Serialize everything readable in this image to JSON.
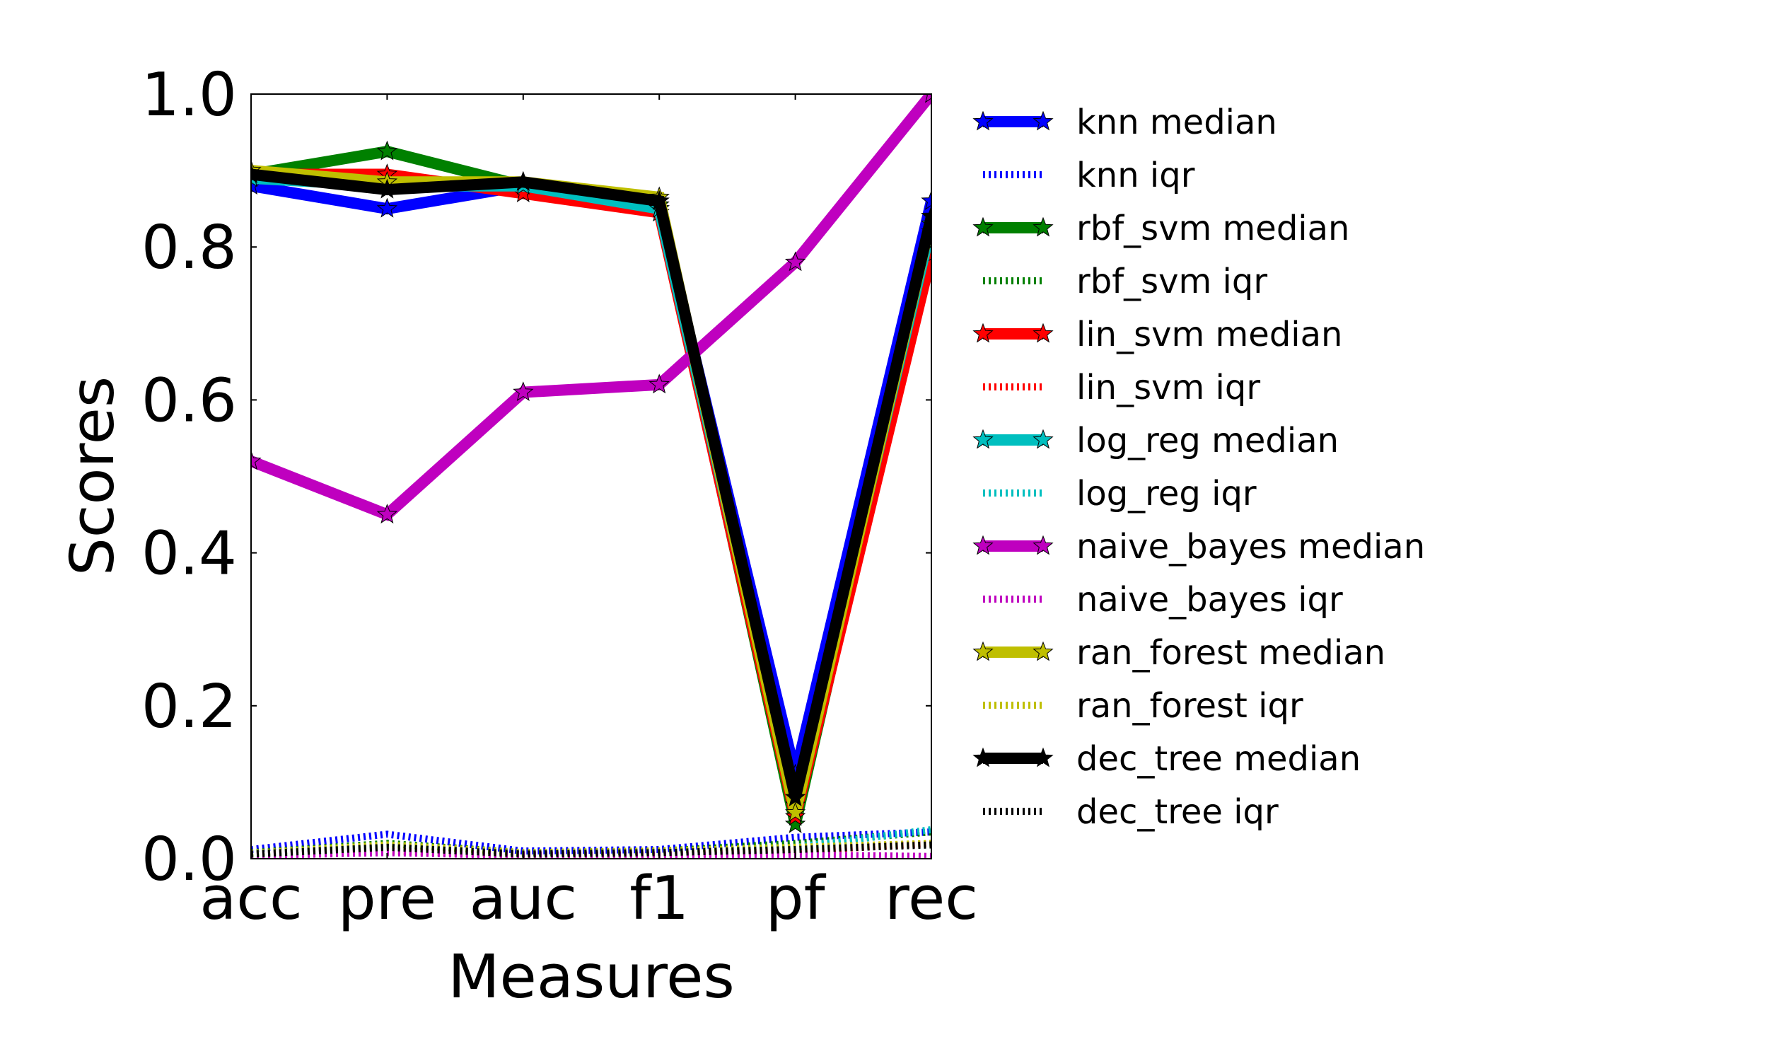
{
  "chart_data": {
    "type": "line",
    "title": "",
    "xlabel": "Measures",
    "ylabel": "Scores",
    "categories": [
      "acc",
      "pre",
      "auc",
      "f1",
      "pf",
      "rec"
    ],
    "ylim": [
      0,
      1
    ],
    "yticks": [
      "0.0",
      "0.2",
      "0.4",
      "0.6",
      "0.8",
      "1.0"
    ],
    "grid": false,
    "legend_position": "right",
    "series": [
      {
        "name": "knn median",
        "color": "#0000ff",
        "style": "solid",
        "marker": "star",
        "values": [
          0.88,
          0.85,
          0.88,
          0.85,
          0.11,
          0.86
        ]
      },
      {
        "name": "knn iqr",
        "color": "#0000ff",
        "style": "dotted",
        "values": [
          0.012,
          0.032,
          0.01,
          0.012,
          0.028,
          0.035
        ]
      },
      {
        "name": "rbf_svm median",
        "color": "#008000",
        "style": "solid",
        "marker": "star",
        "values": [
          0.895,
          0.925,
          0.88,
          0.855,
          0.045,
          0.82
        ]
      },
      {
        "name": "rbf_svm iqr",
        "color": "#008000",
        "style": "dotted",
        "values": [
          0.008,
          0.02,
          0.008,
          0.01,
          0.02,
          0.035
        ]
      },
      {
        "name": "lin_svm median",
        "color": "#ff0000",
        "style": "solid",
        "marker": "star",
        "values": [
          0.895,
          0.895,
          0.87,
          0.845,
          0.055,
          0.79
        ]
      },
      {
        "name": "lin_svm iqr",
        "color": "#ff0000",
        "style": "dotted",
        "values": [
          0.005,
          0.01,
          0.005,
          0.005,
          0.01,
          0.02
        ]
      },
      {
        "name": "log_reg median",
        "color": "#00bfbf",
        "style": "solid",
        "marker": "star",
        "values": [
          0.89,
          0.88,
          0.88,
          0.85,
          0.07,
          0.83
        ]
      },
      {
        "name": "log_reg iqr",
        "color": "#00bfbf",
        "style": "dotted",
        "values": [
          0.006,
          0.015,
          0.007,
          0.008,
          0.015,
          0.038
        ]
      },
      {
        "name": "naive_bayes median",
        "color": "#bf00bf",
        "style": "solid",
        "marker": "star",
        "values": [
          0.52,
          0.45,
          0.61,
          0.62,
          0.78,
          1.0
        ]
      },
      {
        "name": "naive_bayes iqr",
        "color": "#bf00bf",
        "style": "dotted",
        "values": [
          0.004,
          0.008,
          0.004,
          0.004,
          0.005,
          0.003
        ]
      },
      {
        "name": "ran_forest median",
        "color": "#bfbf00",
        "style": "solid",
        "marker": "star",
        "values": [
          0.9,
          0.885,
          0.885,
          0.865,
          0.06,
          0.84
        ]
      },
      {
        "name": "ran_forest iqr",
        "color": "#bfbf00",
        "style": "dotted",
        "values": [
          0.007,
          0.018,
          0.008,
          0.01,
          0.015,
          0.02
        ]
      },
      {
        "name": "dec_tree median",
        "color": "#000000",
        "style": "solid",
        "marker": "star",
        "values": [
          0.895,
          0.875,
          0.885,
          0.86,
          0.08,
          0.84
        ]
      },
      {
        "name": "dec_tree iqr",
        "color": "#000000",
        "style": "dotted",
        "values": [
          0.006,
          0.015,
          0.006,
          0.008,
          0.012,
          0.018
        ]
      }
    ]
  }
}
